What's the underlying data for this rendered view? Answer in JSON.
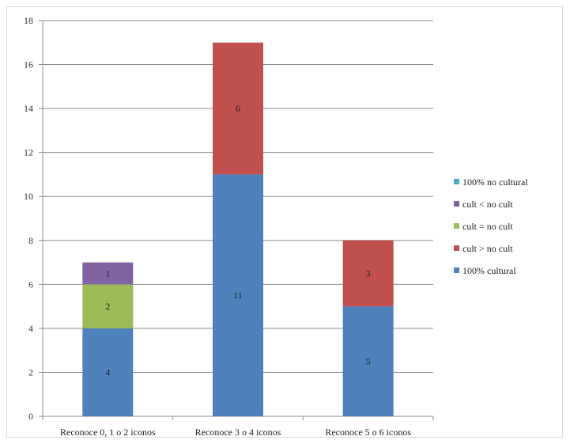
{
  "chart_data": {
    "type": "bar",
    "stacked": true,
    "categories": [
      "Reconoce 0, 1 o 2 iconos",
      "Reconoce 3 o 4 iconos",
      "Reconoce 5 o 6 iconos"
    ],
    "series": [
      {
        "name": "100% cultural",
        "values": [
          4,
          11,
          5
        ],
        "color": "#4f81bd"
      },
      {
        "name": "cult > no cult",
        "values": [
          0,
          6,
          3
        ],
        "color": "#c0504d"
      },
      {
        "name": "cult = no cult",
        "values": [
          2,
          0,
          0
        ],
        "color": "#9bbb59"
      },
      {
        "name": "cult < no cult",
        "values": [
          1,
          0,
          0
        ],
        "color": "#8064a2"
      },
      {
        "name": "100% no cultural",
        "values": [
          0,
          0,
          0
        ],
        "color": "#4bacc6"
      }
    ],
    "legend_order": [
      "100% no cultural",
      "cult < no cult",
      "cult = no cult",
      "cult > no cult",
      "100% cultural"
    ],
    "ylim": [
      0,
      18
    ],
    "yticks": [
      0,
      2,
      4,
      6,
      8,
      10,
      12,
      14,
      16,
      18
    ],
    "grid": true,
    "legend_position": "right",
    "title": "",
    "xlabel": "",
    "ylabel": ""
  }
}
